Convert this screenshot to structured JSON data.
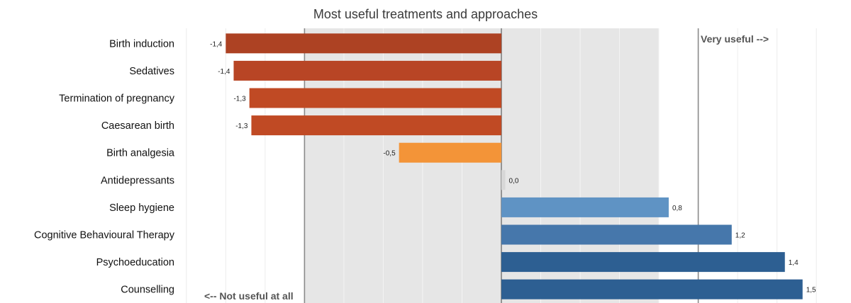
{
  "chart_data": {
    "type": "bar",
    "orientation": "horizontal",
    "title": "Most useful treatments and approaches",
    "xlabel": "",
    "ylabel": "",
    "xlim": [
      -1.6,
      1.6
    ],
    "grid": true,
    "categories": [
      "Birth induction",
      "Sedatives",
      "Termination of pregnancy",
      "Caesarean birth",
      "Birth analgesia",
      "Antidepressants",
      "Sleep hygiene",
      "Cognitive Behavioural Therapy",
      "Psychoeducation",
      "Counselling"
    ],
    "values": [
      -1.4,
      -1.36,
      -1.28,
      -1.27,
      -0.52,
      0.02,
      0.85,
      1.17,
      1.44,
      1.53
    ],
    "value_labels": [
      "-1,4",
      "-1,4",
      "-1,3",
      "-1,3",
      "-0,5",
      "0,0",
      "0,8",
      "1,2",
      "1,4",
      "1,5"
    ],
    "bar_colors": [
      "#ad4223",
      "#b84525",
      "#c04a24",
      "#c04a24",
      "#f39438",
      "#d7d7d7",
      "#5f93c4",
      "#4677ab",
      "#2d5f92",
      "#2d5f92"
    ],
    "shaded_band": [
      -1.0,
      0.8
    ],
    "reference_lines": [
      -1.0,
      0.0,
      1.0
    ],
    "annotations": {
      "left": "<-- Not useful at all",
      "right": "Very useful -->"
    }
  }
}
